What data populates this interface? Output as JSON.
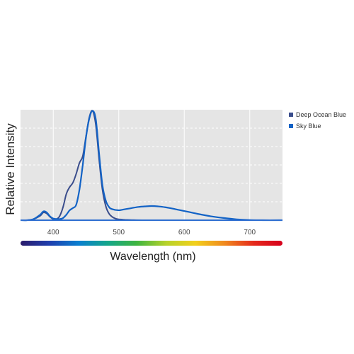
{
  "chart_data": {
    "type": "line",
    "title": "",
    "xlabel": "Wavelength (nm)",
    "ylabel": "Relative Intensity",
    "xlim": [
      350,
      750
    ],
    "ylim": [
      0,
      1
    ],
    "x_ticks": [
      400,
      500,
      600,
      700
    ],
    "grid": true,
    "legend_position": "right",
    "colors": {
      "deep_ocean_blue": "#3a4d8c",
      "sky_blue": "#1363c6",
      "plot_background": "#e5e5e5",
      "grid": "#ffffff",
      "axis": "#2f6fd1"
    },
    "spectrum_bar_colors": [
      "#2b1b6b",
      "#1f3fae",
      "#0a7fd0",
      "#14a68a",
      "#3fb540",
      "#b7d22a",
      "#f2d01c",
      "#f08a1e",
      "#e52a1c",
      "#d6001c"
    ],
    "series": [
      {
        "name": "Deep Ocean Blue",
        "color": "#3a4d8c",
        "points": [
          [
            350,
            0.0
          ],
          [
            360,
            0.0
          ],
          [
            370,
            0.01
          ],
          [
            380,
            0.04
          ],
          [
            385,
            0.07
          ],
          [
            390,
            0.06
          ],
          [
            395,
            0.03
          ],
          [
            400,
            0.01
          ],
          [
            405,
            0.01
          ],
          [
            410,
            0.04
          ],
          [
            415,
            0.12
          ],
          [
            420,
            0.24
          ],
          [
            425,
            0.3
          ],
          [
            430,
            0.34
          ],
          [
            435,
            0.42
          ],
          [
            440,
            0.52
          ],
          [
            445,
            0.58
          ],
          [
            450,
            0.76
          ],
          [
            455,
            0.93
          ],
          [
            460,
            0.99
          ],
          [
            465,
            0.86
          ],
          [
            470,
            0.55
          ],
          [
            475,
            0.28
          ],
          [
            480,
            0.13
          ],
          [
            485,
            0.06
          ],
          [
            490,
            0.03
          ],
          [
            495,
            0.015
          ],
          [
            500,
            0.008
          ],
          [
            510,
            0.004
          ],
          [
            520,
            0.002
          ],
          [
            540,
            0.0
          ],
          [
            600,
            0.0
          ],
          [
            700,
            0.0
          ],
          [
            750,
            0.0
          ]
        ]
      },
      {
        "name": "Sky Blue",
        "color": "#1363c6",
        "points": [
          [
            350,
            0.0
          ],
          [
            360,
            0.0
          ],
          [
            370,
            0.01
          ],
          [
            380,
            0.05
          ],
          [
            385,
            0.08
          ],
          [
            390,
            0.07
          ],
          [
            395,
            0.035
          ],
          [
            400,
            0.015
          ],
          [
            405,
            0.01
          ],
          [
            410,
            0.01
          ],
          [
            415,
            0.02
          ],
          [
            420,
            0.05
          ],
          [
            425,
            0.09
          ],
          [
            430,
            0.11
          ],
          [
            435,
            0.14
          ],
          [
            440,
            0.28
          ],
          [
            445,
            0.5
          ],
          [
            450,
            0.75
          ],
          [
            455,
            0.92
          ],
          [
            460,
            0.99
          ],
          [
            465,
            0.91
          ],
          [
            470,
            0.6
          ],
          [
            475,
            0.32
          ],
          [
            480,
            0.18
          ],
          [
            485,
            0.12
          ],
          [
            490,
            0.1
          ],
          [
            500,
            0.09
          ],
          [
            510,
            0.1
          ],
          [
            520,
            0.11
          ],
          [
            530,
            0.12
          ],
          [
            540,
            0.125
          ],
          [
            550,
            0.128
          ],
          [
            560,
            0.125
          ],
          [
            570,
            0.118
          ],
          [
            580,
            0.108
          ],
          [
            590,
            0.095
          ],
          [
            600,
            0.083
          ],
          [
            620,
            0.058
          ],
          [
            640,
            0.036
          ],
          [
            660,
            0.02
          ],
          [
            680,
            0.008
          ],
          [
            700,
            0.002
          ],
          [
            720,
            0.0
          ],
          [
            750,
            0.0
          ]
        ]
      }
    ]
  }
}
